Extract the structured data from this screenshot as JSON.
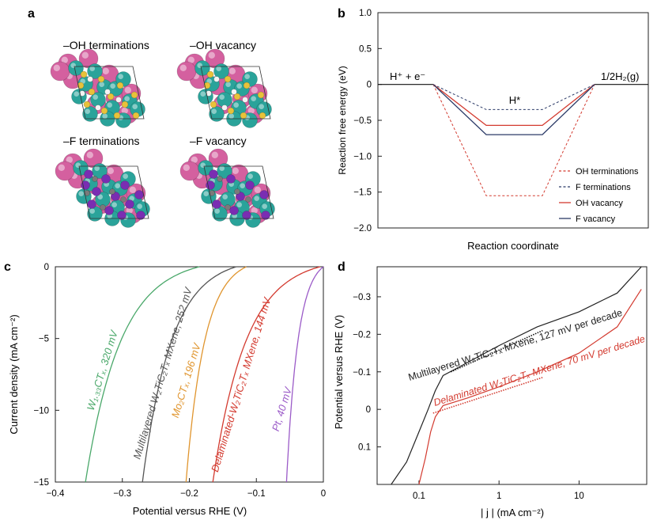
{
  "panels": {
    "a": "a",
    "b": "b",
    "c": "c",
    "d": "d"
  },
  "panel_a": {
    "labels": [
      "–OH terminations",
      "–OH vacancy",
      "–F terminations",
      "–F vacancy"
    ],
    "colors": {
      "large": "#d4609f",
      "metal": "#2aa39a",
      "small_oh": "#e8c23a",
      "small_f": "#7a2db2",
      "carbon": "#7a7a7a"
    }
  },
  "chart_data": [
    {
      "panel": "b",
      "type": "line",
      "title": "",
      "xlabel": "Reaction coordinate",
      "ylabel": "Reaction free energy (eV)",
      "ylim": [
        -2.0,
        1.0
      ],
      "yticks": [
        "1.0",
        "0.5",
        "0",
        "−0.5",
        "−1.0",
        "−1.5",
        "−2.0"
      ],
      "ytick_values": [
        1.0,
        0.5,
        0,
        -0.5,
        -1.0,
        -1.5,
        -2.0
      ],
      "states": [
        "H⁺ + e⁻",
        "H*",
        "1/2H₂(g)"
      ],
      "state_energies": {
        "initial": 0,
        "final": 0
      },
      "series": [
        {
          "name": "OH terminations",
          "dG_H": -1.55,
          "style": "dashed",
          "color": "#d33a2f"
        },
        {
          "name": "F terminations",
          "dG_H": -0.35,
          "style": "dashed",
          "color": "#2b3a67"
        },
        {
          "name": "OH vacancy",
          "dG_H": -0.57,
          "style": "solid",
          "color": "#d33a2f"
        },
        {
          "name": "F vacancy",
          "dG_H": -0.7,
          "style": "solid",
          "color": "#2b3a67"
        }
      ],
      "legend": "bottom-right"
    },
    {
      "panel": "c",
      "type": "line",
      "xlabel": "Potential versus RHE (V)",
      "ylabel": "Current density (mA cm⁻²)",
      "xlim": [
        -0.4,
        0
      ],
      "ylim": [
        -15,
        0
      ],
      "xticks": [
        "−0.4",
        "−0.3",
        "−0.2",
        "−0.1",
        "0"
      ],
      "xtick_values": [
        -0.4,
        -0.3,
        -0.2,
        -0.1,
        0
      ],
      "yticks": [
        "0",
        "−5",
        "−10",
        "−15"
      ],
      "ytick_values": [
        0,
        -5,
        -10,
        -15
      ],
      "series": [
        {
          "name": "W₁.₃₃CTₓ, 320 mV",
          "color": "#4aa86a",
          "onset": -0.185,
          "end": -0.355,
          "label_x": -0.325,
          "label_y": -7.3
        },
        {
          "name": "Multilayered W₂TiC₂Tₓ MXene, 252 mV",
          "color": "#555555",
          "onset": -0.13,
          "end": -0.27,
          "label_x": -0.235,
          "label_y": -7.5
        },
        {
          "name": "Mo₂CTₓ, 196 mV",
          "color": "#e0952e",
          "onset": -0.115,
          "end": -0.205,
          "label_x": -0.2,
          "label_y": -8.0
        },
        {
          "name": "Delaminated-W₂TiC₂Tₓ MXene, 144 mV",
          "color": "#d33a2f",
          "onset": -0.005,
          "end": -0.165,
          "label_x": -0.118,
          "label_y": -8.3
        },
        {
          "name": "Pt, 40 mV",
          "color": "#9b5bc8",
          "onset": 0.0,
          "end": -0.055,
          "label_x": -0.057,
          "label_y": -10.0
        }
      ]
    },
    {
      "panel": "d",
      "type": "line",
      "xlabel": "| j | (mA cm⁻²)",
      "ylabel": "Potential versus RHE (V)",
      "xscale": "log",
      "xlim": [
        0.03,
        70
      ],
      "ylim": [
        0.2,
        -0.38
      ],
      "xticks": [
        "0.1",
        "1",
        "10"
      ],
      "xtick_values": [
        0.1,
        1,
        10
      ],
      "yticks": [
        "−0.3",
        "−0.2",
        "−0.1",
        "0",
        "0.1"
      ],
      "ytick_values": [
        -0.3,
        -0.2,
        -0.1,
        0,
        0.1
      ],
      "series": [
        {
          "name": "Multilayered W₂TiC₂Tₓ MXene, 127 mV per decade",
          "color": "#222222",
          "tafel_slope_mV_per_decade": 127
        },
        {
          "name": "Delaminated W₂TiC₂Tₓ MXene, 70 mV per decade",
          "color": "#d33a2f",
          "tafel_slope_mV_per_decade": 70
        }
      ]
    }
  ]
}
